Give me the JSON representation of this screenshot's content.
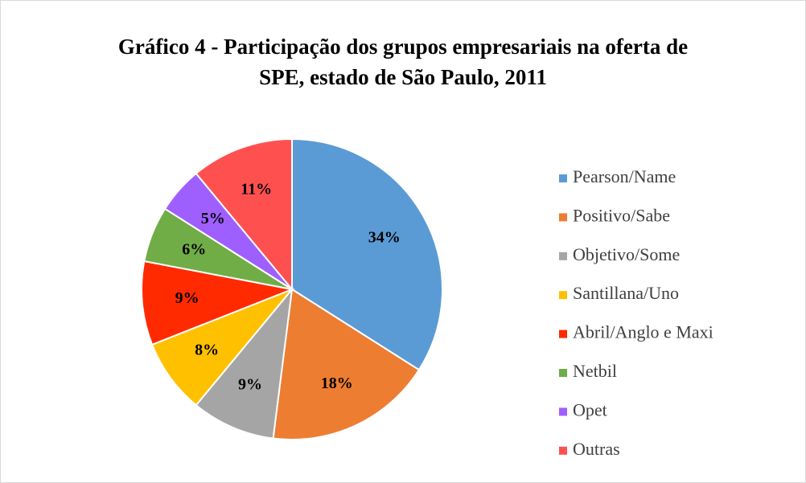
{
  "chart_data": {
    "type": "pie",
    "title": "Gráfico 4 - Participação dos grupos empresariais na oferta de SPE, estado de São Paulo, 2011",
    "categories": [
      "Pearson/Name",
      "Positivo/Sabe",
      "Objetivo/Some",
      "Santillana/Uno",
      "Abril/Anglo e Maxi",
      "Netbil",
      "Opet",
      "Outras"
    ],
    "values": [
      34,
      18,
      9,
      8,
      9,
      6,
      5,
      11
    ],
    "value_labels": [
      "34%",
      "18%",
      "9%",
      "8%",
      "9%",
      "6%",
      "5%",
      "11%"
    ],
    "colors": [
      "#5b9bd5",
      "#ed7d31",
      "#a5a5a5",
      "#ffc000",
      "#ff2a00",
      "#70ad47",
      "#9f5fff",
      "#ff5050"
    ],
    "legend": "right"
  }
}
